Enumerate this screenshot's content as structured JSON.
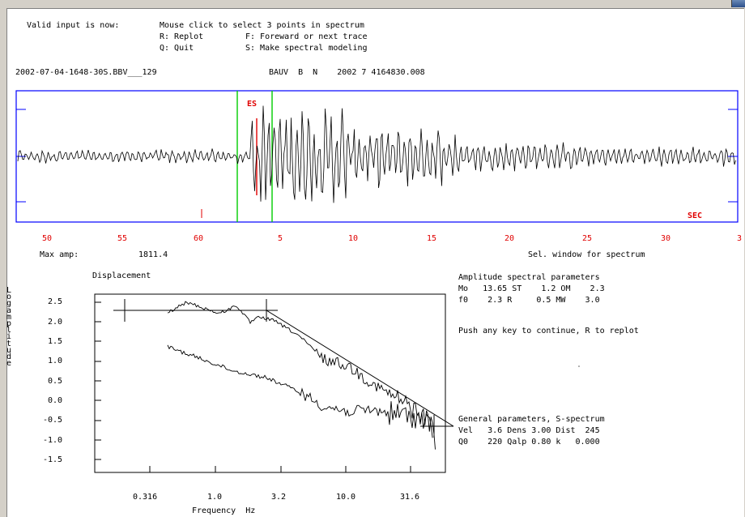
{
  "header": {
    "line1_label": "Valid input is now:",
    "line1_text": "Mouse click to select 3 points in spectrum",
    "opt_replot": "R: Replot",
    "opt_forward": "F: Foreward or next trace",
    "opt_quit": "Q: Quit",
    "opt_model": "S: Make spectral modeling",
    "file_name": "2002-07-04-1648-30S.BBV___129",
    "station_info": "BAUV  B  N    2002 7 4164830.008"
  },
  "trace": {
    "phase_label": "ES",
    "sec_label": "SEC",
    "ticks": [
      "50",
      "55",
      "60",
      "5",
      "10",
      "15",
      "20",
      "25",
      "30",
      "3"
    ],
    "max_amp_label": "Max amp:",
    "max_amp_value": "1811.4",
    "sel_window": "Sel. window for spectrum"
  },
  "spectrum": {
    "title": "Displacement",
    "ylabel": "Log amplitude",
    "xlabel": "Frequency  Hz",
    "yticks": [
      "2.5",
      "2.0",
      "1.5",
      "1.0",
      "0.5",
      "0.0",
      "-0.5",
      "-1.0",
      "-1.5"
    ],
    "xticks": [
      "0.316",
      "1.0",
      "3.2",
      "10.0",
      "31.6"
    ]
  },
  "params": {
    "title": "Amplitude spectral parameters",
    "row1": "Mo   13.65 ST    1.2 OM    2.3",
    "row2": "f0    2.3 R     0.5 MW    3.0",
    "push_msg": "Push any key to continue, R to replot",
    "general_title": "General parameters, S-spectrum",
    "general_row1": "Vel   3.6 Dens 3.00 Dist  245",
    "general_row2": "Q0    220 Qalp 0.80 k   0.000"
  },
  "colors": {
    "frame_blue": "#0000ff",
    "pick_red": "#e00000",
    "window_green": "#00cc00"
  }
}
